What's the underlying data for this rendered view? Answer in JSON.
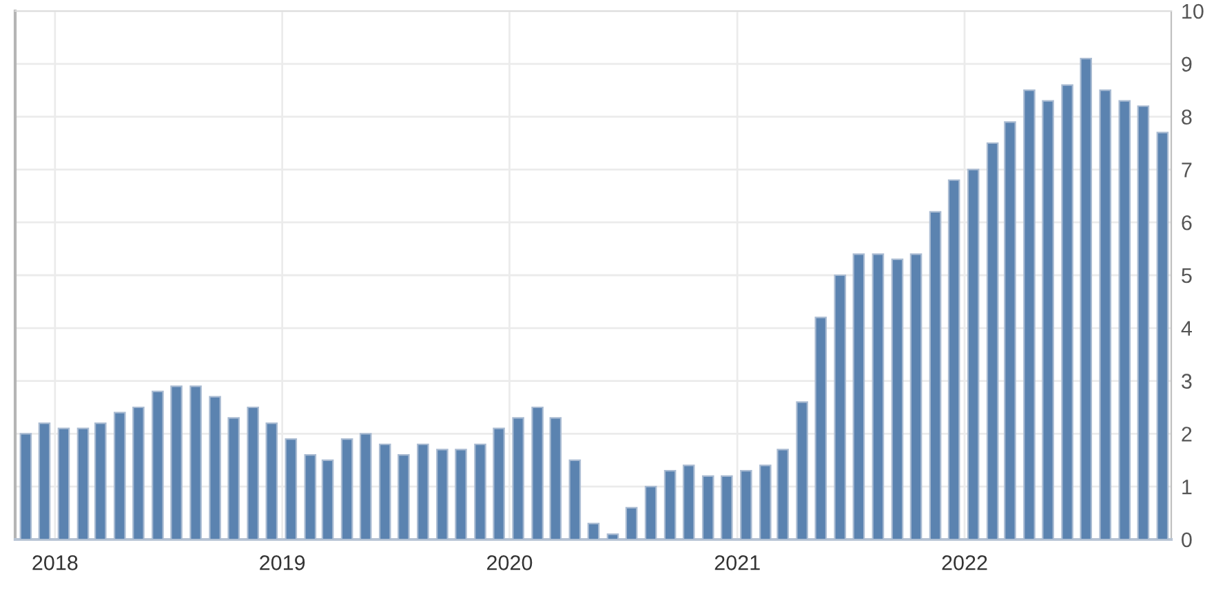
{
  "chart_data": {
    "type": "bar",
    "x": [
      "2017-11-15",
      "2017-12-15",
      "2018-01-15",
      "2018-02-15",
      "2018-03-15",
      "2018-04-15",
      "2018-05-15",
      "2018-06-15",
      "2018-07-15",
      "2018-08-15",
      "2018-09-15",
      "2018-10-15",
      "2018-11-15",
      "2018-12-15",
      "2019-01-15",
      "2019-02-15",
      "2019-03-15",
      "2019-04-15",
      "2019-05-15",
      "2019-06-15",
      "2019-07-15",
      "2019-08-15",
      "2019-09-15",
      "2019-10-15",
      "2019-11-15",
      "2019-12-15",
      "2020-01-15",
      "2020-02-15",
      "2020-03-15",
      "2020-04-15",
      "2020-05-15",
      "2020-06-15",
      "2020-07-15",
      "2020-08-15",
      "2020-09-15",
      "2020-10-15",
      "2020-11-15",
      "2020-12-15",
      "2021-01-15",
      "2021-02-15",
      "2021-03-15",
      "2021-04-15",
      "2021-05-15",
      "2021-06-15",
      "2021-07-15",
      "2021-08-15",
      "2021-09-15",
      "2021-10-15",
      "2021-11-15",
      "2021-12-15",
      "2022-01-15",
      "2022-02-15",
      "2022-03-15",
      "2022-04-15",
      "2022-05-15",
      "2022-06-15",
      "2022-07-15",
      "2022-08-15",
      "2022-09-15",
      "2022-10-15",
      "2022-11-15"
    ],
    "values": [
      2.0,
      2.2,
      2.1,
      2.1,
      2.2,
      2.4,
      2.5,
      2.8,
      2.9,
      2.9,
      2.7,
      2.3,
      2.5,
      2.2,
      1.9,
      1.6,
      1.5,
      1.9,
      2.0,
      1.8,
      1.6,
      1.8,
      1.7,
      1.7,
      1.8,
      2.1,
      2.3,
      2.5,
      2.3,
      1.5,
      0.3,
      0.1,
      0.6,
      1.0,
      1.3,
      1.4,
      1.2,
      1.2,
      1.3,
      1.4,
      1.7,
      2.6,
      4.2,
      5.0,
      5.4,
      5.4,
      5.3,
      5.4,
      6.2,
      6.8,
      7.0,
      7.5,
      7.9,
      8.5,
      8.3,
      8.6,
      9.1,
      8.5,
      8.3,
      8.2,
      7.7
    ],
    "color": "#5b83b0",
    "xlim": [
      "2017-10-29",
      "2022-11-29"
    ],
    "xticks": [
      {
        "value": "2018-01-01",
        "label": "2018"
      },
      {
        "value": "2019-01-01",
        "label": "2019"
      },
      {
        "value": "2020-01-01",
        "label": "2020"
      },
      {
        "value": "2021-01-01",
        "label": "2021"
      },
      {
        "value": "2022-01-01",
        "label": "2022"
      }
    ],
    "ylim": [
      0,
      10
    ],
    "yticks": [
      0,
      1,
      2,
      3,
      4,
      5,
      6,
      7,
      8,
      9,
      10
    ],
    "grid": true
  }
}
